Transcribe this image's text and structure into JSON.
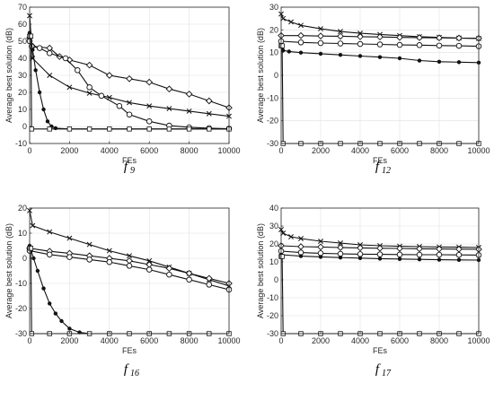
{
  "chart_data": [
    {
      "type": "line",
      "caption": "f",
      "caption_sub": "9",
      "xlabel": "FEs",
      "ylabel": "Average best solution (dB)",
      "xlim": [
        0,
        10000
      ],
      "ylim": [
        -10,
        70
      ],
      "xticks": [
        0,
        2000,
        4000,
        6000,
        8000,
        10000
      ],
      "yticks": [
        -10,
        0,
        10,
        20,
        30,
        40,
        50,
        60,
        70
      ],
      "grid": true,
      "series": [
        {
          "marker": "x",
          "x": [
            0,
            150,
            1000,
            2000,
            3000,
            4000,
            5000,
            6000,
            7000,
            8000,
            9000,
            10000
          ],
          "y": [
            65,
            40,
            30,
            23,
            19.5,
            17,
            14,
            12,
            10.5,
            9,
            7.5,
            6
          ]
        },
        {
          "marker": "diamond",
          "x": [
            0,
            150,
            1000,
            1500,
            2000,
            3000,
            4000,
            5000,
            6000,
            7000,
            8000,
            9000,
            10000
          ],
          "y": [
            52,
            47,
            46,
            41,
            39,
            36,
            30,
            28,
            26,
            22,
            19,
            15,
            11
          ]
        },
        {
          "marker": "circle",
          "x": [
            0,
            100,
            500,
            1000,
            1800,
            2400,
            3000,
            3600,
            4500,
            5000,
            6000,
            7000,
            8000,
            9000,
            10000
          ],
          "y": [
            50,
            47,
            46,
            43,
            40,
            33,
            23,
            18,
            12,
            7,
            3,
            0.5,
            -0.5,
            -1,
            -1.3
          ]
        },
        {
          "marker": "dot",
          "x": [
            0,
            150,
            300,
            500,
            700,
            900,
            1100,
            1300,
            2000,
            4000,
            6000,
            8000,
            10000
          ],
          "y": [
            55,
            45,
            33,
            20,
            10,
            3,
            0,
            -1,
            -1.5,
            -1.5,
            -1.5,
            -1.5,
            -1.5
          ]
        },
        {
          "marker": "square",
          "x": [
            0,
            60,
            100,
            1000,
            2000,
            3000,
            4000,
            5000,
            6000,
            7000,
            8000,
            9000,
            10000
          ],
          "y": [
            53,
            53,
            -1.5,
            -1.5,
            -1.5,
            -1.5,
            -1.5,
            -1.5,
            -1.5,
            -1.5,
            -1.5,
            -1.5,
            -1.5
          ]
        }
      ]
    },
    {
      "type": "line",
      "caption": "f",
      "caption_sub": "12",
      "xlabel": "FEs",
      "ylabel": "Average best solution (dB)",
      "xlim": [
        0,
        10000
      ],
      "ylim": [
        -30,
        30
      ],
      "xticks": [
        0,
        2000,
        4000,
        6000,
        8000,
        10000
      ],
      "yticks": [
        -30,
        -20,
        -10,
        0,
        10,
        20,
        30
      ],
      "grid": true,
      "series": [
        {
          "marker": "x",
          "x": [
            0,
            100,
            500,
            1000,
            2000,
            3000,
            4000,
            5000,
            6000,
            7000,
            8000,
            9000,
            10000
          ],
          "y": [
            27,
            25,
            23.5,
            22,
            20.5,
            19.3,
            18.5,
            18,
            17.5,
            17,
            16.7,
            16.4,
            16.2
          ]
        },
        {
          "marker": "diamond",
          "x": [
            0,
            1000,
            2000,
            3000,
            4000,
            5000,
            6000,
            7000,
            8000,
            9000,
            10000
          ],
          "y": [
            17.5,
            17.5,
            17.3,
            17.2,
            17,
            16.9,
            16.7,
            16.6,
            16.5,
            16.4,
            16.3
          ]
        },
        {
          "marker": "circle",
          "x": [
            0,
            1000,
            2000,
            3000,
            4000,
            5000,
            6000,
            7000,
            8000,
            9000,
            10000
          ],
          "y": [
            15,
            14.5,
            14.2,
            14,
            13.8,
            13.6,
            13.4,
            13.3,
            13.1,
            13,
            12.8
          ]
        },
        {
          "marker": "dot",
          "x": [
            0,
            100,
            400,
            1000,
            2000,
            3000,
            4000,
            5000,
            6000,
            7000,
            8000,
            9000,
            10000
          ],
          "y": [
            13,
            11,
            10.5,
            10,
            9.5,
            9,
            8.5,
            8,
            7.5,
            6.5,
            6,
            5.8,
            5.6
          ]
        },
        {
          "marker": "square",
          "x": [
            0,
            50,
            100,
            1000,
            2000,
            3000,
            4000,
            5000,
            6000,
            7000,
            8000,
            9000,
            10000
          ],
          "y": [
            13,
            13,
            -30,
            -30,
            -30,
            -30,
            -30,
            -30,
            -30,
            -30,
            -30,
            -30,
            -30
          ]
        }
      ]
    },
    {
      "type": "line",
      "caption": "f",
      "caption_sub": "16",
      "xlabel": "FEs",
      "ylabel": "Average best solution (dB)",
      "xlim": [
        0,
        10000
      ],
      "ylim": [
        -30,
        20
      ],
      "xticks": [
        0,
        2000,
        4000,
        6000,
        8000,
        10000
      ],
      "yticks": [
        -30,
        -20,
        -10,
        0,
        10,
        20
      ],
      "grid": true,
      "series": [
        {
          "marker": "x",
          "x": [
            0,
            150,
            1000,
            2000,
            3000,
            4000,
            5000,
            6000,
            7000,
            8000,
            9000,
            10000
          ],
          "y": [
            19,
            13,
            10.5,
            8,
            5.5,
            3,
            1,
            -1,
            -3.5,
            -6,
            -8.5,
            -11
          ]
        },
        {
          "marker": "diamond",
          "x": [
            0,
            1000,
            2000,
            3000,
            4000,
            5000,
            6000,
            7000,
            8000,
            9000,
            10000
          ],
          "y": [
            4,
            2.8,
            2,
            1,
            0,
            -1,
            -2.5,
            -4,
            -6,
            -8,
            -10
          ]
        },
        {
          "marker": "circle",
          "x": [
            0,
            1000,
            2000,
            3000,
            4000,
            5000,
            6000,
            7000,
            8000,
            9000,
            10000
          ],
          "y": [
            3,
            1.5,
            0.5,
            -0.5,
            -1.5,
            -3,
            -4.5,
            -6.5,
            -8.5,
            -10.5,
            -12.5
          ]
        },
        {
          "marker": "dot",
          "x": [
            0,
            200,
            400,
            700,
            1000,
            1300,
            1600,
            2000,
            2500,
            3000,
            4000,
            6000,
            8000,
            10000
          ],
          "y": [
            5,
            0,
            -5,
            -12,
            -18,
            -22,
            -25,
            -28,
            -29.5,
            -30,
            -30,
            -30,
            -30,
            -30
          ]
        },
        {
          "marker": "square",
          "x": [
            0,
            60,
            100,
            1000,
            2000,
            3000,
            4000,
            5000,
            6000,
            7000,
            8000,
            9000,
            10000
          ],
          "y": [
            4,
            4,
            -30,
            -30,
            -30,
            -30,
            -30,
            -30,
            -30,
            -30,
            -30,
            -30,
            -30
          ]
        }
      ]
    },
    {
      "type": "line",
      "caption": "f",
      "caption_sub": "17",
      "xlabel": "FEs",
      "ylabel": "Average best solution (dB)",
      "xlim": [
        0,
        10000
      ],
      "ylim": [
        -30,
        40
      ],
      "xticks": [
        0,
        2000,
        4000,
        6000,
        8000,
        10000
      ],
      "yticks": [
        -30,
        -20,
        -10,
        0,
        10,
        20,
        30,
        40
      ],
      "grid": true,
      "series": [
        {
          "marker": "x",
          "x": [
            0,
            100,
            500,
            1000,
            2000,
            3000,
            4000,
            5000,
            6000,
            7000,
            8000,
            9000,
            10000
          ],
          "y": [
            28,
            26,
            24,
            23,
            21.5,
            20.5,
            19.5,
            19,
            18.7,
            18.5,
            18.3,
            18.2,
            18
          ]
        },
        {
          "marker": "diamond",
          "x": [
            0,
            1000,
            2000,
            3000,
            4000,
            5000,
            6000,
            7000,
            8000,
            9000,
            10000
          ],
          "y": [
            19,
            18.5,
            18.3,
            18,
            17.8,
            17.6,
            17.5,
            17.3,
            17.2,
            17.1,
            17
          ]
        },
        {
          "marker": "circle",
          "x": [
            0,
            1000,
            2000,
            3000,
            4000,
            5000,
            6000,
            7000,
            8000,
            9000,
            10000
          ],
          "y": [
            16,
            15.2,
            14.8,
            14.5,
            14.3,
            14.2,
            14.1,
            14,
            14,
            13.9,
            13.8
          ]
        },
        {
          "marker": "dot",
          "x": [
            0,
            1000,
            2000,
            3000,
            4000,
            5000,
            6000,
            7000,
            8000,
            9000,
            10000
          ],
          "y": [
            14,
            13.2,
            12.8,
            12.4,
            12.1,
            11.8,
            11.6,
            11.4,
            11.2,
            11.1,
            11
          ]
        },
        {
          "marker": "square",
          "x": [
            0,
            50,
            100,
            1000,
            2000,
            3000,
            4000,
            5000,
            6000,
            7000,
            8000,
            9000,
            10000
          ],
          "y": [
            13,
            13,
            -30,
            -30,
            -30,
            -30,
            -30,
            -30,
            -30,
            -30,
            -30,
            -30,
            -30
          ]
        }
      ]
    }
  ]
}
